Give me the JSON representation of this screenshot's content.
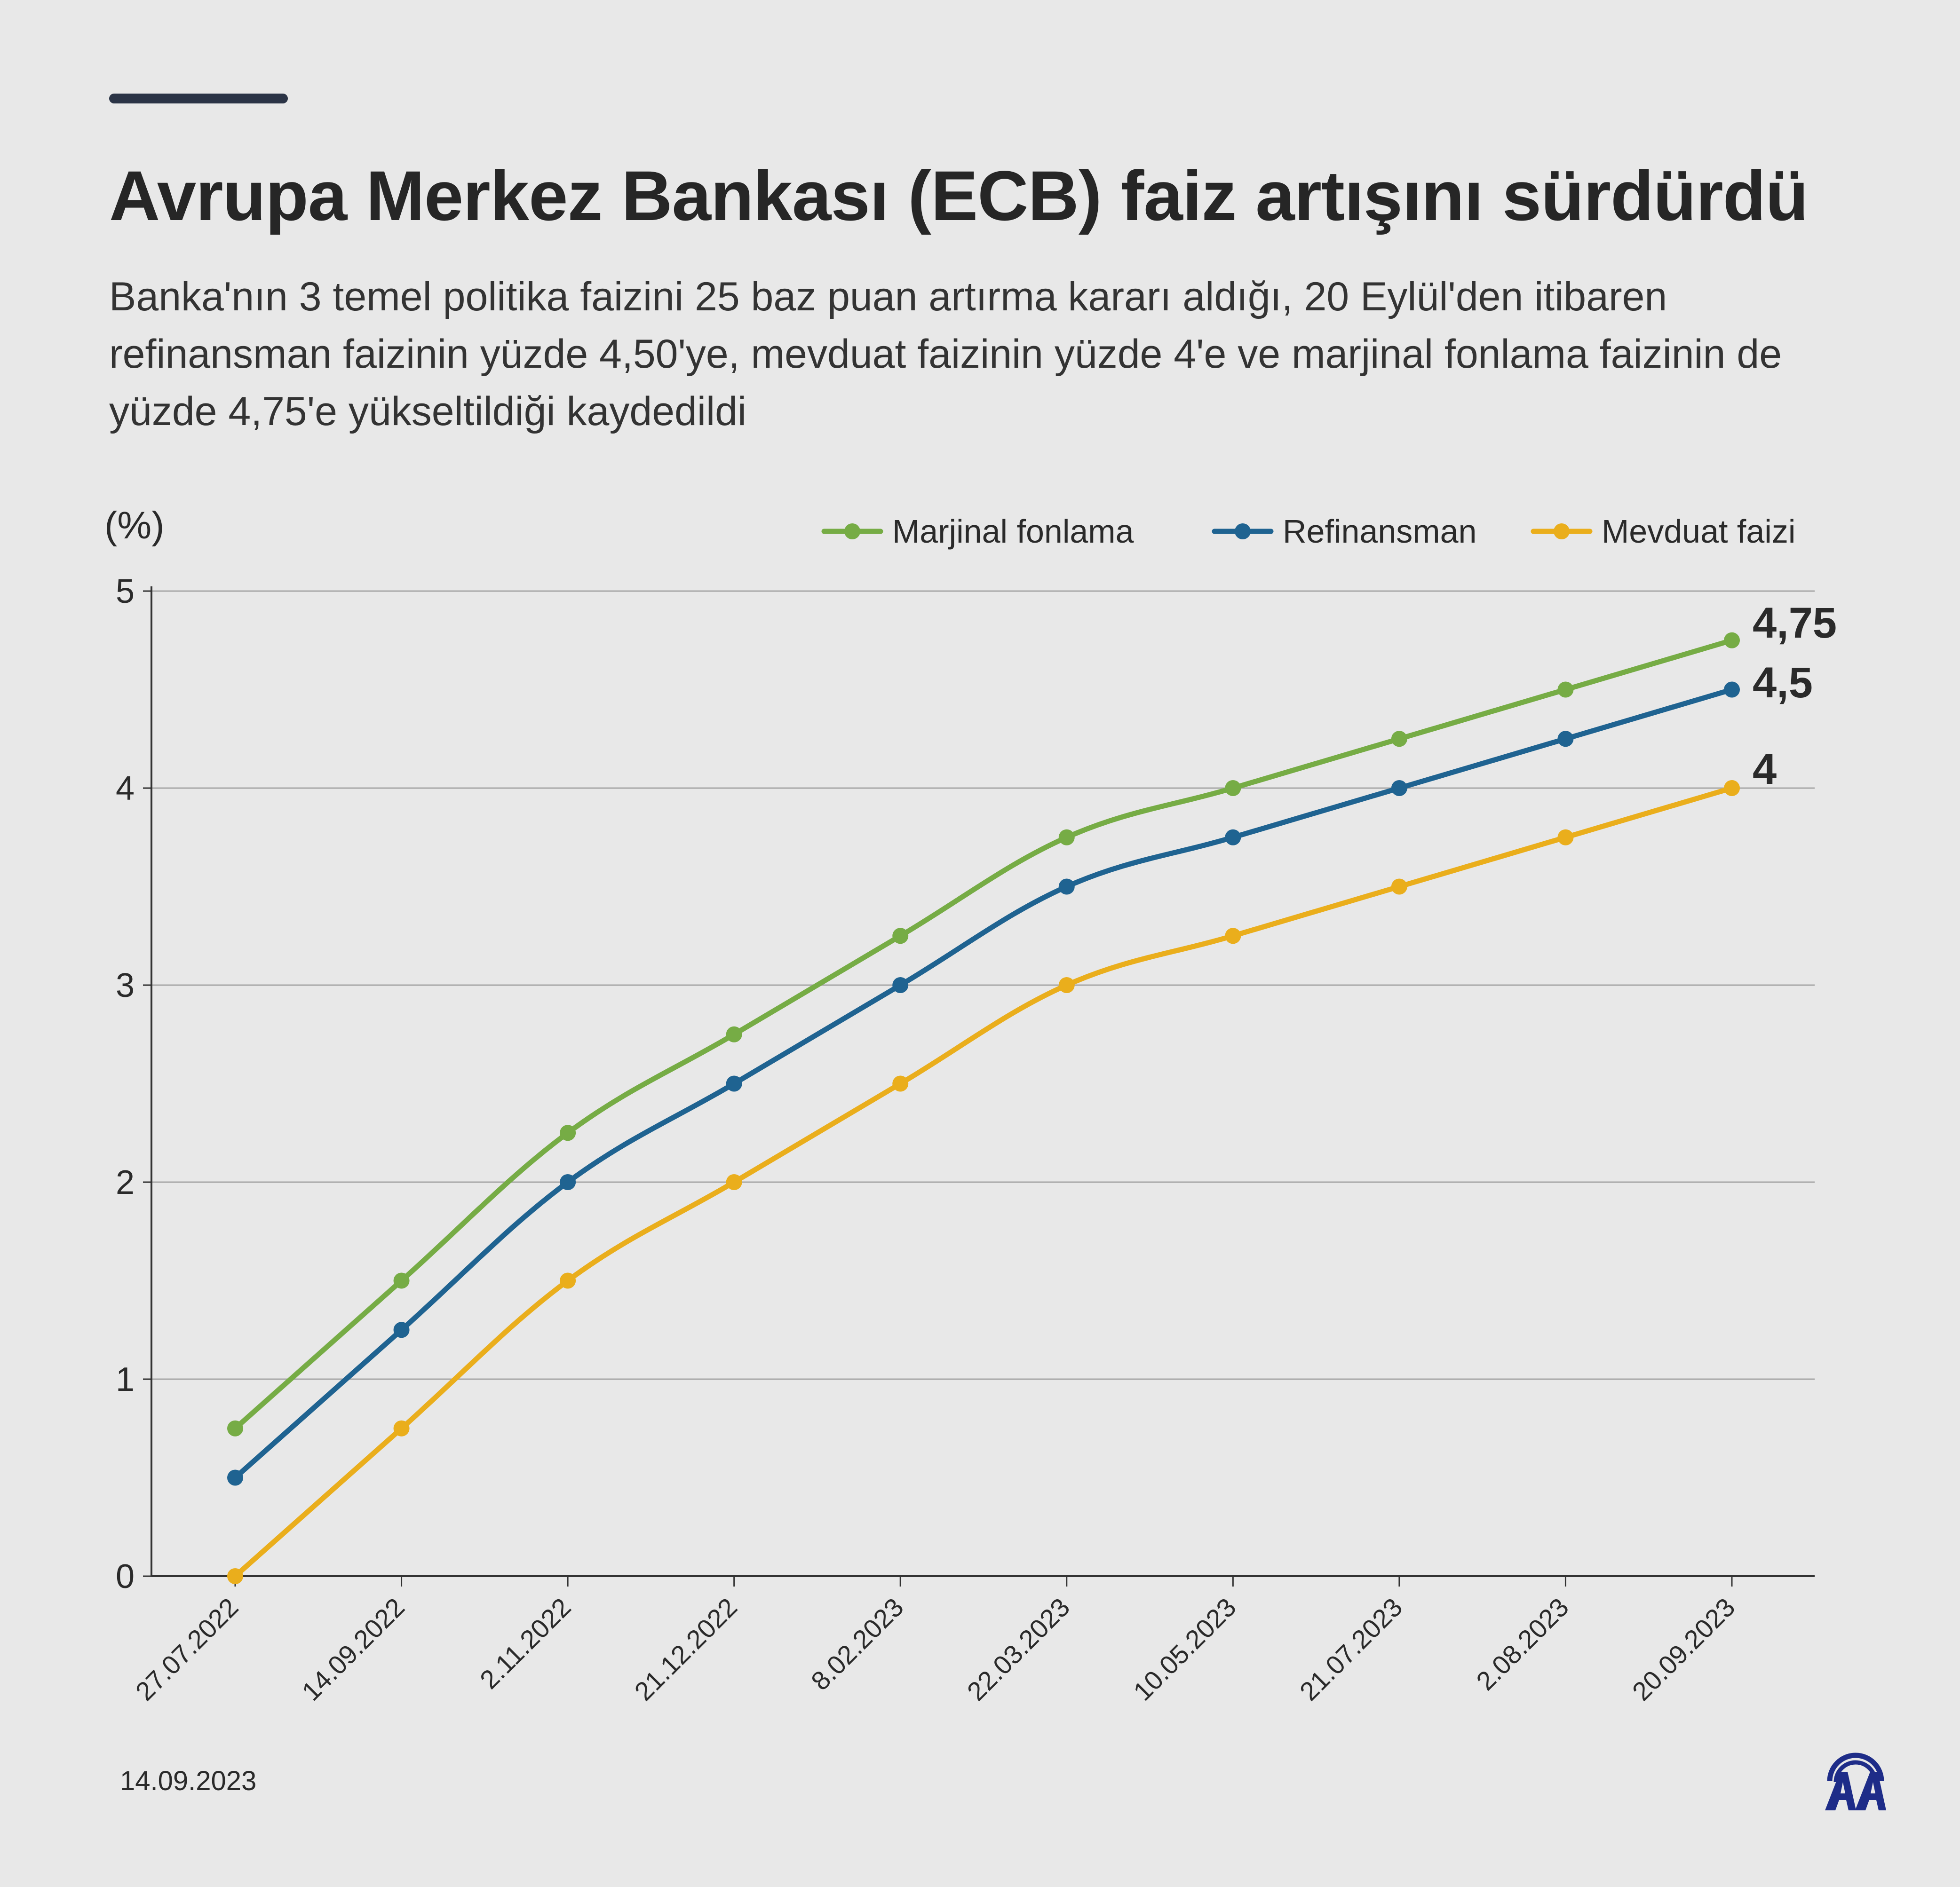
{
  "header": {
    "title": "Avrupa Merkez Bankası (ECB) faiz artışını sürdürdü",
    "subtitle": "Banka'nın 3 temel politika faizini 25 baz puan artırma kararı aldığı, 20 Eylül'den itibaren refinansman faizinin yüzde 4,50'ye, mevduat faizinin yüzde 4'e ve marjinal fonlama faizinin de yüzde 4,75'e yükseltildiği kaydedildi"
  },
  "footer": {
    "date": "14.09.2023",
    "logo_icon": "aa-logo-icon",
    "logo_color": "#1e2c88"
  },
  "chart_data": {
    "type": "line",
    "ylabel": "(%)",
    "ylim": [
      0,
      5
    ],
    "yticks": [
      "0",
      "1",
      "2",
      "3",
      "4",
      "5"
    ],
    "grid": true,
    "legend_position": "top-right",
    "categories": [
      "27.07.2022",
      "14.09.2022",
      "2.11.2022",
      "21.12.2022",
      "8.02.2023",
      "22.03.2023",
      "10.05.2023",
      "21.07.2023",
      "2.08.2023",
      "20.09.2023"
    ],
    "series": [
      {
        "name": "Marjinal fonlama",
        "color": "#76ac45",
        "values": [
          0.75,
          1.5,
          2.25,
          2.75,
          3.25,
          3.75,
          4.0,
          4.25,
          4.5,
          4.75
        ],
        "end_label": "4,75"
      },
      {
        "name": "Refinansman",
        "color": "#1f6391",
        "values": [
          0.5,
          1.25,
          2.0,
          2.5,
          3.0,
          3.5,
          3.75,
          4.0,
          4.25,
          4.5
        ],
        "end_label": "4,5"
      },
      {
        "name": "Mevduat faizi",
        "color": "#eaae1c",
        "values": [
          0.0,
          0.75,
          1.5,
          2.0,
          2.5,
          3.0,
          3.25,
          3.5,
          3.75,
          4.0
        ],
        "end_label": "4"
      }
    ]
  }
}
